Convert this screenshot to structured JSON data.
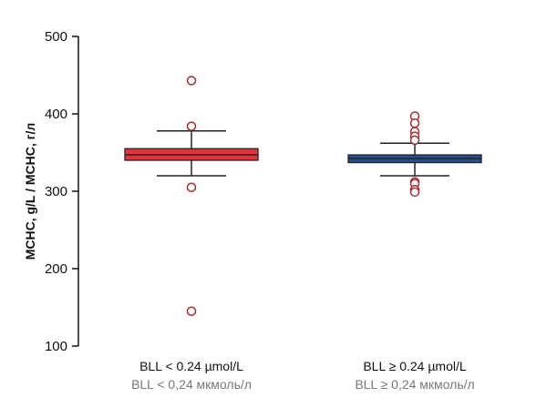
{
  "chart_data": {
    "type": "box",
    "ylabel": "MCHC, g/L / MCHC, г/л",
    "ylim": [
      100,
      500
    ],
    "yticks": [
      "100",
      "200",
      "300",
      "400",
      "500"
    ],
    "grid": false,
    "categories": [
      {
        "label": "BLL < 0.24 µmol/L",
        "sublabel": "BLL < 0,24 мкмоль/л"
      },
      {
        "label": "BLL ≥ 0.24 µmol/L",
        "sublabel": "BLL ≥ 0,24 мкмоль/л"
      }
    ],
    "series": [
      {
        "color": "#e8323a",
        "whisker_low": 320,
        "q1": 340,
        "median": 347,
        "q3": 355,
        "whisker_high": 378,
        "outliers": [
          443,
          384,
          305,
          145
        ]
      },
      {
        "color": "#2a4f8f",
        "whisker_low": 320,
        "q1": 337,
        "median": 342,
        "q3": 347,
        "whisker_high": 362,
        "outliers": [
          397,
          388,
          377,
          371,
          366,
          312,
          310,
          302,
          299
        ]
      }
    ],
    "outlier_color": "#a52a2a"
  }
}
